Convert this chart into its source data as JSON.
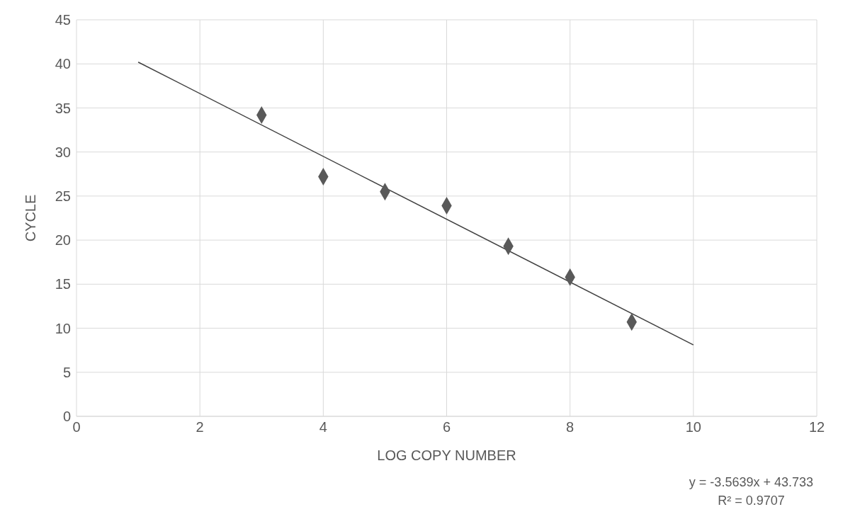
{
  "chart_data": {
    "type": "scatter",
    "xlabel": "LOG COPY NUMBER",
    "ylabel": "CYCLE",
    "marker": "diamond",
    "grid": true,
    "xlim": [
      0,
      12
    ],
    "xticks": [
      0,
      2,
      4,
      6,
      8,
      10,
      12
    ],
    "ylim": [
      0,
      45
    ],
    "yticks": [
      0,
      5,
      10,
      15,
      20,
      25,
      30,
      35,
      40,
      45
    ],
    "series": [
      {
        "color": "#595959",
        "x": [
          3,
          4,
          5,
          6,
          7,
          8,
          9
        ],
        "values": [
          34.2,
          27.2,
          25.5,
          23.9,
          19.3,
          15.8,
          10.7
        ]
      },
      {
        "type": "line",
        "color": "#404040",
        "x": [
          1,
          10
        ],
        "values": [
          40.2,
          8.1
        ],
        "marker": "none"
      }
    ],
    "annotations": [
      "y = -3.5639x + 43.733",
      "R² = 0.9707"
    ]
  }
}
